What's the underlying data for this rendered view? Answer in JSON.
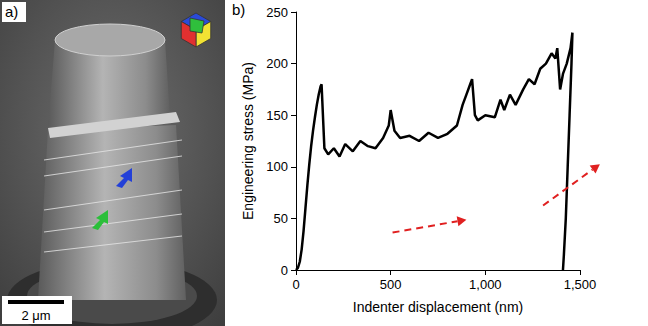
{
  "panel_a": {
    "label": "a)",
    "scale_bar": "2 μm"
  },
  "chart_data": {
    "type": "line",
    "panel_label": "b)",
    "color": "#000000",
    "x_label": "Indenter displacement (nm)",
    "y_label": "Engineering stress (MPa)",
    "x": [
      0,
      10,
      20,
      30,
      40,
      50,
      60,
      70,
      80,
      90,
      100,
      110,
      120,
      130,
      135,
      150,
      170,
      200,
      230,
      260,
      300,
      340,
      380,
      420,
      460,
      490,
      500,
      520,
      550,
      600,
      650,
      700,
      750,
      800,
      850,
      880,
      900,
      920,
      930,
      945,
      960,
      1000,
      1050,
      1080,
      1100,
      1130,
      1160,
      1200,
      1230,
      1260,
      1290,
      1320,
      1350,
      1370,
      1380,
      1395,
      1410,
      1430,
      1450,
      1460,
      1455,
      1445,
      1435,
      1425,
      1415,
      1410
    ],
    "values": [
      0,
      2,
      8,
      20,
      38,
      60,
      82,
      102,
      120,
      135,
      148,
      160,
      170,
      178,
      180,
      118,
      112,
      118,
      110,
      122,
      115,
      125,
      120,
      118,
      128,
      140,
      155,
      135,
      128,
      130,
      125,
      133,
      128,
      132,
      140,
      160,
      170,
      180,
      185,
      150,
      145,
      150,
      148,
      165,
      155,
      170,
      160,
      175,
      185,
      180,
      195,
      200,
      210,
      205,
      215,
      175,
      190,
      200,
      215,
      230,
      200,
      150,
      100,
      50,
      15,
      0
    ],
    "xlim": [
      0,
      1500
    ],
    "xticks": [
      0,
      500,
      1000,
      1500
    ],
    "ylim": [
      0,
      250
    ],
    "yticks": [
      0,
      50,
      100,
      150,
      200,
      250
    ],
    "grid": false
  }
}
